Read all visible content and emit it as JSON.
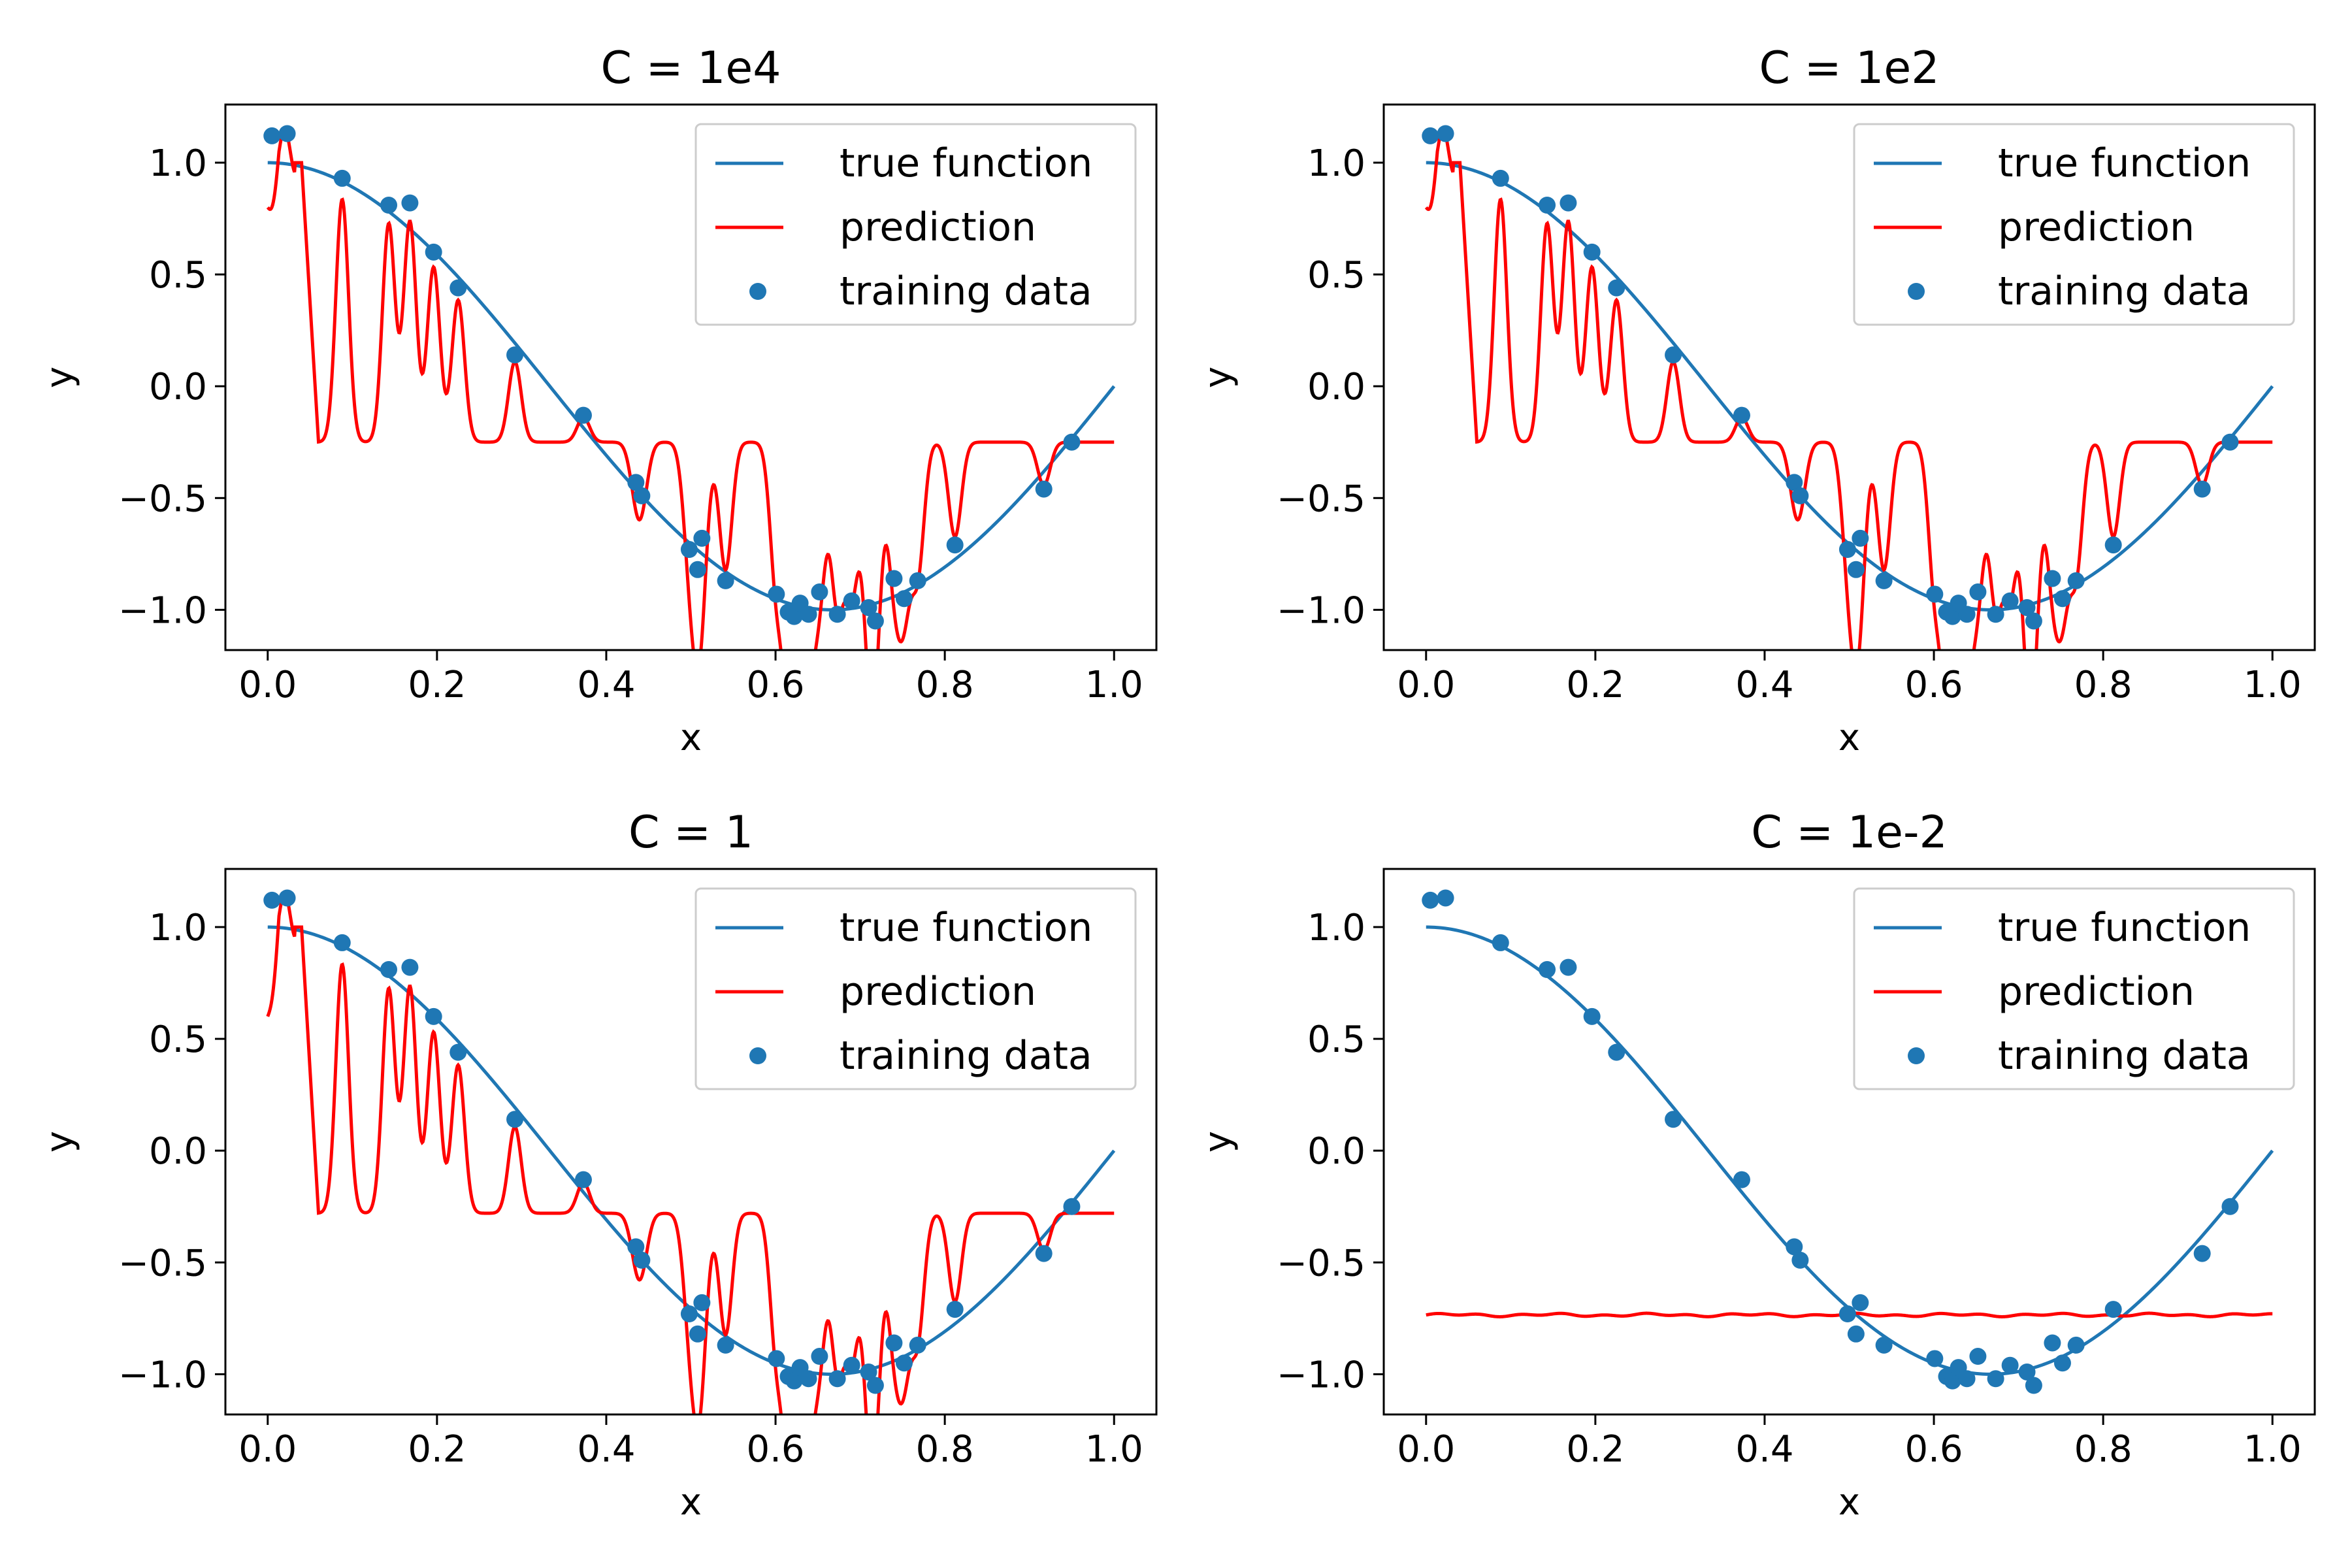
{
  "colors": {
    "true_function": "#1f77b4",
    "prediction": "#ff0000",
    "training_data": "#1f77b4"
  },
  "training_data": {
    "x": [
      0.005,
      0.023,
      0.088,
      0.143,
      0.168,
      0.196,
      0.225,
      0.292,
      0.373,
      0.435,
      0.442,
      0.498,
      0.513,
      0.508,
      0.541,
      0.601,
      0.615,
      0.622,
      0.629,
      0.639,
      0.652,
      0.673,
      0.69,
      0.71,
      0.718,
      0.74,
      0.752,
      0.768,
      0.812,
      0.917,
      0.95
    ],
    "y": [
      1.12,
      1.13,
      0.93,
      0.81,
      0.82,
      0.6,
      0.44,
      0.14,
      -0.13,
      -0.43,
      -0.49,
      -0.73,
      -0.68,
      -0.82,
      -0.87,
      -0.93,
      -1.01,
      -1.03,
      -0.97,
      -1.02,
      -0.92,
      -1.02,
      -0.96,
      -0.99,
      -1.05,
      -0.86,
      -0.95,
      -0.87,
      -0.71,
      -0.46,
      -0.25
    ]
  },
  "chart_data": [
    {
      "type": "line",
      "title": "C = 1e4",
      "xlabel": "x",
      "ylabel": "y",
      "xlim": [
        -0.05,
        1.05
      ],
      "ylim": [
        -1.18,
        1.26
      ],
      "xticks": [
        "0.0",
        "0.2",
        "0.4",
        "0.6",
        "0.8",
        "1.0"
      ],
      "yticks": [
        "−1.0",
        "−0.5",
        "0.0",
        "0.5",
        "1.0"
      ],
      "grid": false,
      "legend": {
        "placement": "top-right",
        "entries": [
          "true function",
          "prediction",
          "training data"
        ]
      },
      "series": [
        {
          "name": "true function",
          "function": "cos(3πx/2)"
        },
        {
          "name": "prediction",
          "baseline": -0.25,
          "start": 0.8,
          "variant": "spiky"
        },
        {
          "name": "training data"
        }
      ]
    },
    {
      "type": "line",
      "title": "C = 1e2",
      "xlabel": "x",
      "ylabel": "y",
      "xlim": [
        -0.05,
        1.05
      ],
      "ylim": [
        -1.18,
        1.26
      ],
      "xticks": [
        "0.0",
        "0.2",
        "0.4",
        "0.6",
        "0.8",
        "1.0"
      ],
      "yticks": [
        "−1.0",
        "−0.5",
        "0.0",
        "0.5",
        "1.0"
      ],
      "grid": false,
      "legend": {
        "placement": "top-right",
        "entries": [
          "true function",
          "prediction",
          "training data"
        ]
      },
      "series": [
        {
          "name": "true function",
          "function": "cos(3πx/2)"
        },
        {
          "name": "prediction",
          "baseline": -0.25,
          "start": 0.8,
          "variant": "spiky"
        },
        {
          "name": "training data"
        }
      ]
    },
    {
      "type": "line",
      "title": "C = 1",
      "xlabel": "x",
      "ylabel": "y",
      "xlim": [
        -0.05,
        1.05
      ],
      "ylim": [
        -1.18,
        1.26
      ],
      "xticks": [
        "0.0",
        "0.2",
        "0.4",
        "0.6",
        "0.8",
        "1.0"
      ],
      "yticks": [
        "−1.0",
        "−0.5",
        "0.0",
        "0.5",
        "1.0"
      ],
      "grid": false,
      "legend": {
        "placement": "top-right",
        "entries": [
          "true function",
          "prediction",
          "training data"
        ]
      },
      "series": [
        {
          "name": "true function",
          "function": "cos(3πx/2)"
        },
        {
          "name": "prediction",
          "baseline": -0.28,
          "start": 0.6,
          "variant": "spiky"
        },
        {
          "name": "training data"
        }
      ]
    },
    {
      "type": "line",
      "title": "C = 1e-2",
      "xlabel": "x",
      "ylabel": "y",
      "xlim": [
        -0.05,
        1.05
      ],
      "ylim": [
        -1.18,
        1.26
      ],
      "xticks": [
        "0.0",
        "0.2",
        "0.4",
        "0.6",
        "0.8",
        "1.0"
      ],
      "yticks": [
        "−1.0",
        "−0.5",
        "0.0",
        "0.5",
        "1.0"
      ],
      "grid": false,
      "legend": {
        "placement": "top-right",
        "entries": [
          "true function",
          "prediction",
          "training data"
        ]
      },
      "series": [
        {
          "name": "true function",
          "function": "cos(3πx/2)"
        },
        {
          "name": "prediction",
          "baseline": -0.735,
          "variant": "flat"
        },
        {
          "name": "training data"
        }
      ]
    }
  ]
}
